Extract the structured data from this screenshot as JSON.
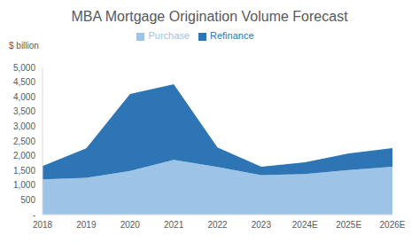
{
  "chart_data": {
    "type": "area",
    "title": "MBA Mortgage Origination Volume Forecast",
    "ylabel": "$ billion",
    "categories": [
      "2018",
      "2019",
      "2020",
      "2021",
      "2022",
      "2023",
      "2024E",
      "2025E",
      "2026E"
    ],
    "series": [
      {
        "name": "Purchase",
        "color": "#9dc3e6",
        "values": [
          1200,
          1250,
          1480,
          1860,
          1620,
          1340,
          1380,
          1510,
          1630
        ]
      },
      {
        "name": "Refinance",
        "color": "#2e75b6",
        "values": [
          450,
          1000,
          2620,
          2570,
          660,
          290,
          400,
          570,
          630
        ]
      }
    ],
    "stacked": true,
    "ylim": [
      0,
      5000
    ],
    "yticks": [
      {
        "value": 0,
        "label": "-"
      },
      500,
      {
        "value": 1000,
        "label": "1,000"
      },
      {
        "value": 1500,
        "label": "1,500"
      },
      {
        "value": 2000,
        "label": "2,000"
      },
      {
        "value": 2500,
        "label": "2,500"
      },
      {
        "value": 3000,
        "label": "3,000"
      },
      {
        "value": 3500,
        "label": "3,500"
      },
      {
        "value": 4000,
        "label": "4,000"
      },
      {
        "value": 4500,
        "label": "4,500"
      },
      {
        "value": 5000,
        "label": "5,000"
      }
    ],
    "grid": false,
    "legend": "top"
  }
}
